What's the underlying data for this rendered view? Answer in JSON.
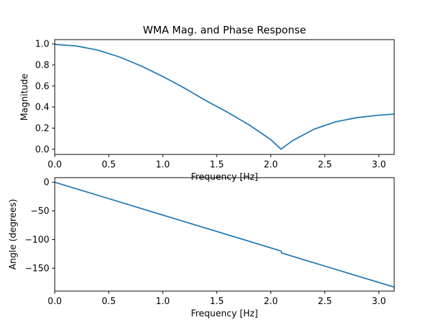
{
  "chart_data": [
    {
      "type": "line",
      "title": "WMA Mag. and Phase Response",
      "xlabel": "Frequency [Hz]",
      "ylabel": "Magnitude",
      "xlim": [
        0,
        3.1416
      ],
      "ylim": [
        -0.05,
        1.04
      ],
      "xticks": [
        0.0,
        0.5,
        1.0,
        1.5,
        2.0,
        2.5,
        3.0
      ],
      "xtick_labels": [
        "0.0",
        "0.5",
        "1.0",
        "1.5",
        "2.0",
        "2.5",
        "3.0"
      ],
      "yticks": [
        0.0,
        0.2,
        0.4,
        0.6,
        0.8,
        1.0
      ],
      "ytick_labels": [
        "0.0",
        "0.2",
        "0.4",
        "0.6",
        "0.8",
        "1.0"
      ],
      "grid": false,
      "color": "#1f77b4",
      "x": [
        0.0,
        0.2,
        0.4,
        0.6,
        0.8,
        1.0,
        1.2,
        1.4,
        1.6,
        1.8,
        2.0,
        2.094,
        2.2,
        2.4,
        2.6,
        2.8,
        3.0,
        3.1416
      ],
      "y": [
        0.995,
        0.98,
        0.94,
        0.875,
        0.79,
        0.69,
        0.58,
        0.46,
        0.35,
        0.23,
        0.09,
        0.0,
        0.08,
        0.19,
        0.26,
        0.3,
        0.323,
        0.333
      ]
    },
    {
      "type": "line",
      "title": "",
      "xlabel": "Frequency [Hz]",
      "ylabel": "Angle (degrees)",
      "xlim": [
        0,
        3.1416
      ],
      "ylim": [
        -190,
        8
      ],
      "xticks": [
        0.0,
        0.5,
        1.0,
        1.5,
        2.0,
        2.5,
        3.0
      ],
      "xtick_labels": [
        "0.0",
        "0.5",
        "1.0",
        "1.5",
        "2.0",
        "2.5",
        "3.0"
      ],
      "yticks": [
        0,
        -50,
        -100,
        -150
      ],
      "ytick_labels": [
        "0",
        "−50",
        "−100",
        "−150"
      ],
      "grid": false,
      "color": "#1f77b4",
      "x": [
        0.0,
        0.5,
        1.0,
        1.5,
        2.0,
        2.094,
        2.1,
        2.5,
        3.0,
        3.1416
      ],
      "y": [
        0.0,
        -28.6,
        -57.3,
        -85.9,
        -114.6,
        -120.0,
        -123.5,
        -146.4,
        -175.0,
        -183.0
      ]
    }
  ]
}
